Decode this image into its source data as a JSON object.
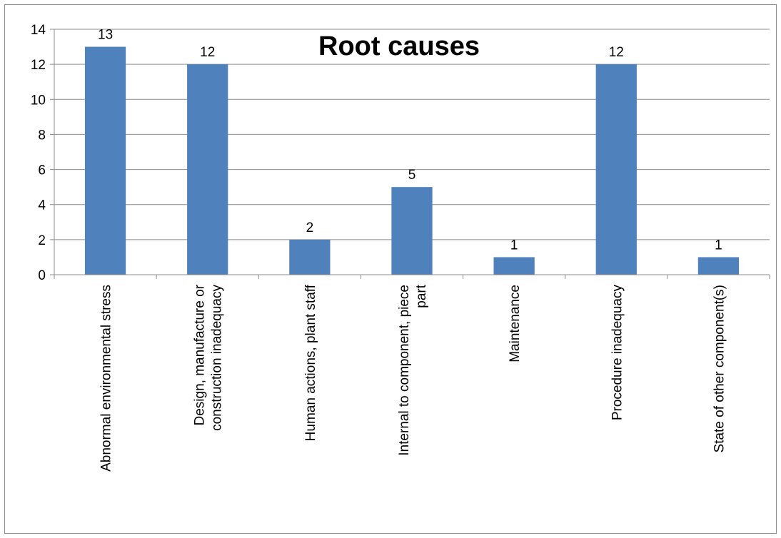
{
  "chart_data": {
    "type": "bar",
    "title": "Root causes",
    "categories": [
      "Abnormal environmental stress",
      "Design, manufacture or construction inadequacy",
      "Human actions, plant staff",
      "Internal to component, piece part",
      "Maintenance",
      "Procedure inadequacy",
      "State of other component(s)"
    ],
    "category_lines": [
      [
        "Abnormal environmental stress"
      ],
      [
        "Design, manufacture or",
        "construction inadequacy"
      ],
      [
        "Human actions, plant staff"
      ],
      [
        "Internal to component, piece",
        "part"
      ],
      [
        "Maintenance"
      ],
      [
        "Procedure inadequacy"
      ],
      [
        "State of other component(s)"
      ]
    ],
    "values": [
      13,
      12,
      2,
      5,
      1,
      12,
      1
    ],
    "ylim": [
      0,
      14
    ],
    "yticks": [
      0,
      2,
      4,
      6,
      8,
      10,
      12,
      14
    ],
    "grid": true,
    "legend": "none",
    "bar_color": "#4f81bd",
    "grid_color": "#8c8c8c"
  }
}
